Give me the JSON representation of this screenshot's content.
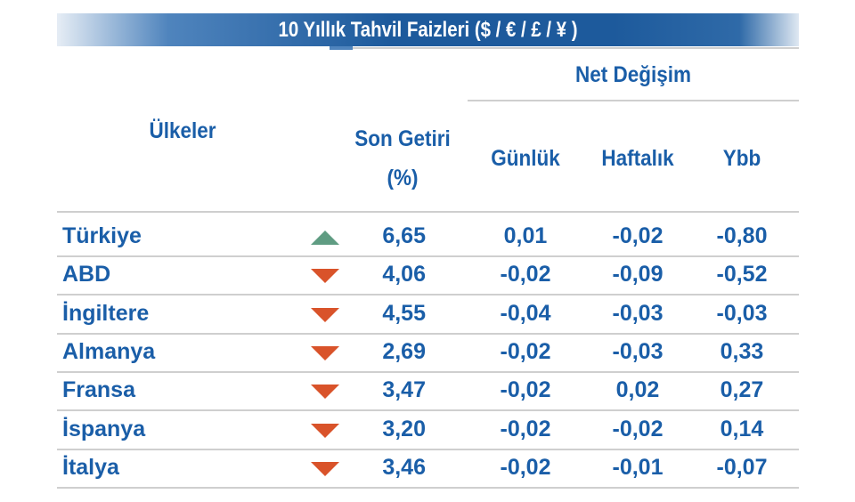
{
  "title": "10 Yıllık Tahvil Faizleri ($ / € / £ / ¥ )",
  "headers": {
    "country": "Ülkeler",
    "yield_line1": "Son Getiri",
    "yield_line2": "(%)",
    "net_change": "Net Değişim",
    "daily": "Günlük",
    "weekly": "Haftalık",
    "ytd": "Ybb"
  },
  "colors": {
    "text": "#1a5ea8",
    "up": "#5f9c82",
    "down": "#d9532a",
    "header": "#1d5a9c"
  },
  "rows": [
    {
      "country": "Türkiye",
      "trend": "up",
      "yield": "6,65",
      "daily": "0,01",
      "weekly": "-0,02",
      "ytd": "-0,80"
    },
    {
      "country": "ABD",
      "trend": "down",
      "yield": "4,06",
      "daily": "-0,02",
      "weekly": "-0,09",
      "ytd": "-0,52"
    },
    {
      "country": "İngiltere",
      "trend": "down",
      "yield": "4,55",
      "daily": "-0,04",
      "weekly": "-0,03",
      "ytd": "-0,03"
    },
    {
      "country": "Almanya",
      "trend": "down",
      "yield": "2,69",
      "daily": "-0,02",
      "weekly": "-0,03",
      "ytd": "0,33"
    },
    {
      "country": "Fransa",
      "trend": "down",
      "yield": "3,47",
      "daily": "-0,02",
      "weekly": "0,02",
      "ytd": "0,27"
    },
    {
      "country": "İspanya",
      "trend": "down",
      "yield": "3,20",
      "daily": "-0,02",
      "weekly": "-0,02",
      "ytd": "0,14"
    },
    {
      "country": "İtalya",
      "trend": "down",
      "yield": "3,46",
      "daily": "-0,02",
      "weekly": "-0,01",
      "ytd": "-0,07"
    }
  ]
}
